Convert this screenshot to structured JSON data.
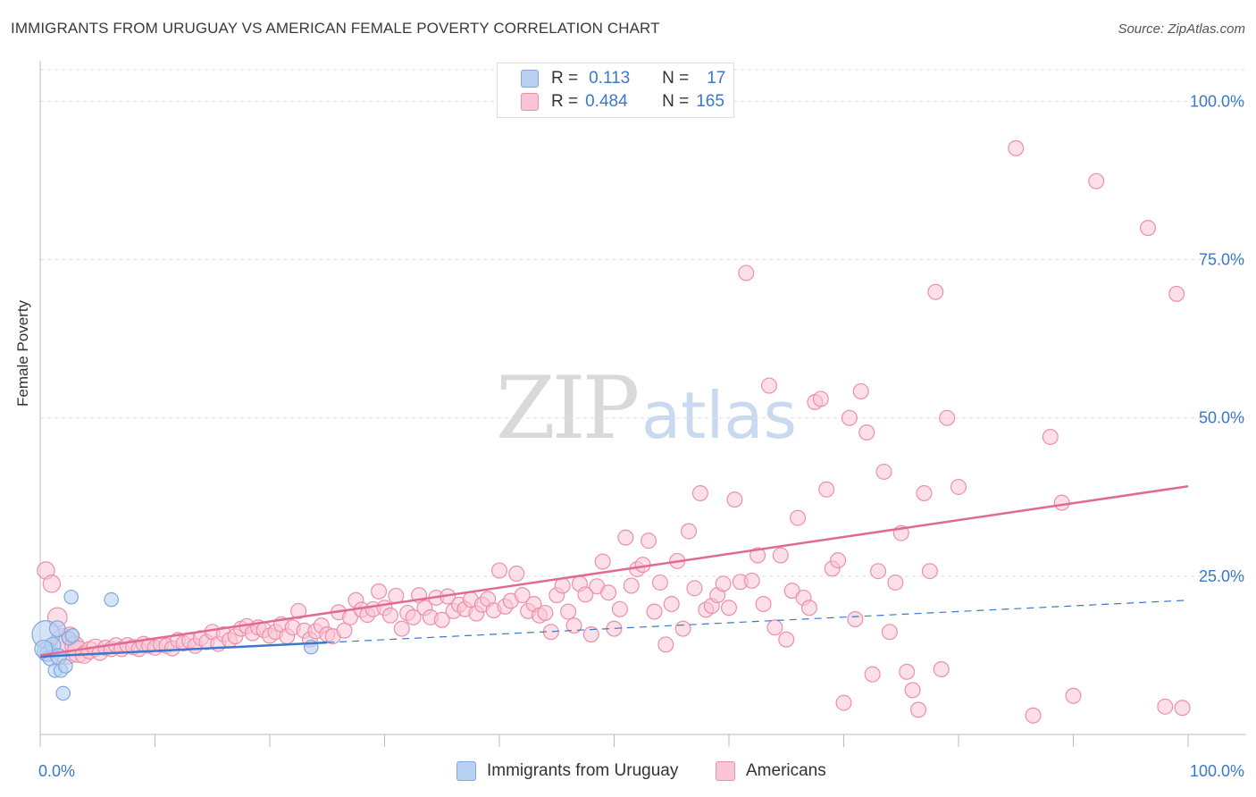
{
  "title": "IMMIGRANTS FROM URUGUAY VS AMERICAN FEMALE POVERTY CORRELATION CHART",
  "source": "Source: ZipAtlas.com",
  "watermark": {
    "zip": "ZIP",
    "atlas": "atlas"
  },
  "colors": {
    "blue_fill": "#b8d1f3",
    "blue_stroke": "#7fa8dc",
    "blue_line": "#3b78c9",
    "pink_fill": "#f9c4d4",
    "pink_stroke": "#ec8fab",
    "pink_line": "#e06a93",
    "value_text": "#3a78c9",
    "grid": "#dddddd"
  },
  "legend": {
    "rows": [
      {
        "r_label": "R =",
        "r_value": "0.113",
        "n_label": "N =",
        "n_value": "17"
      },
      {
        "r_label": "R =",
        "r_value": "0.484",
        "n_label": "N =",
        "n_value": "165"
      }
    ]
  },
  "bottom_legend": [
    "Immigrants from Uruguay",
    "Americans"
  ],
  "chart_data": {
    "type": "scatter",
    "title": "IMMIGRANTS FROM URUGUAY VS AMERICAN FEMALE POVERTY CORRELATION CHART",
    "xlabel": "",
    "ylabel": "Female Poverty",
    "xlim": [
      0,
      100
    ],
    "ylim": [
      0,
      105
    ],
    "x_tick_labels": [
      "0.0%",
      "100.0%"
    ],
    "y_tick_labels": [
      "25.0%",
      "50.0%",
      "75.0%",
      "100.0%"
    ],
    "y_ticks": [
      25,
      50,
      75,
      100
    ],
    "grid": true,
    "legend_position": "top-center",
    "series": [
      {
        "name": "Immigrants from Uruguay",
        "r": 0.113,
        "n": 17,
        "trend": {
          "x": [
            0,
            100
          ],
          "y": [
            12.3,
            21.2
          ],
          "solid_until": 25
        },
        "points": [
          [
            0.5,
            15.8,
            14
          ],
          [
            0.6,
            13.1,
            10
          ],
          [
            0.7,
            12.8,
            8
          ],
          [
            0.9,
            12.1,
            8
          ],
          [
            1.1,
            14.1,
            8
          ],
          [
            1.3,
            10.1,
            7
          ],
          [
            1.5,
            16.7,
            8
          ],
          [
            1.6,
            12.3,
            8
          ],
          [
            1.8,
            10.1,
            7
          ],
          [
            2.0,
            6.5,
            7
          ],
          [
            2.2,
            10.8,
            7
          ],
          [
            2.5,
            15.2,
            7
          ],
          [
            2.7,
            21.7,
            7
          ],
          [
            2.8,
            15.6,
            7
          ],
          [
            6.2,
            21.3,
            7
          ],
          [
            23.6,
            13.8,
            7
          ],
          [
            0.3,
            13.5,
            9
          ]
        ]
      },
      {
        "name": "Americans",
        "r": 0.484,
        "n": 165,
        "trend": {
          "x": [
            0,
            100
          ],
          "y": [
            12.5,
            39.2
          ]
        },
        "points": [
          [
            0.5,
            25.9,
            8
          ],
          [
            1.0,
            23.8,
            8
          ],
          [
            1.5,
            18.5,
            9
          ],
          [
            2.0,
            14.7,
            12
          ],
          [
            2.3,
            13.5,
            14
          ],
          [
            2.6,
            15.6,
            8
          ],
          [
            3.0,
            14.0,
            9
          ],
          [
            3.3,
            13.1,
            10
          ],
          [
            3.8,
            12.6,
            8
          ],
          [
            4.3,
            13.3,
            8
          ],
          [
            4.8,
            13.7,
            8
          ],
          [
            5.2,
            12.9,
            7
          ],
          [
            5.7,
            13.7,
            7
          ],
          [
            6.2,
            13.5,
            7
          ],
          [
            6.6,
            14.1,
            7
          ],
          [
            7.1,
            13.5,
            7
          ],
          [
            7.6,
            14.1,
            7
          ],
          [
            8.1,
            13.8,
            7
          ],
          [
            8.6,
            13.5,
            7
          ],
          [
            9.0,
            14.3,
            7
          ],
          [
            9.5,
            14.0,
            7
          ],
          [
            10.0,
            13.7,
            7
          ],
          [
            10.5,
            14.2,
            7
          ],
          [
            11.0,
            14.0,
            7
          ],
          [
            11.5,
            13.6,
            7
          ],
          [
            12.0,
            14.9,
            7
          ],
          [
            12.5,
            14.4,
            7
          ],
          [
            13.0,
            14.8,
            7
          ],
          [
            13.5,
            14.0,
            7
          ],
          [
            14.0,
            15.2,
            7
          ],
          [
            14.5,
            14.6,
            7
          ],
          [
            15.0,
            16.2,
            7
          ],
          [
            15.5,
            14.3,
            7
          ],
          [
            16.0,
            15.8,
            7
          ],
          [
            16.5,
            14.9,
            7
          ],
          [
            17.0,
            15.5,
            7
          ],
          [
            17.5,
            16.7,
            7
          ],
          [
            18.0,
            17.1,
            7
          ],
          [
            18.5,
            16.0,
            7
          ],
          [
            19.0,
            16.9,
            7
          ],
          [
            19.5,
            16.5,
            7
          ],
          [
            20.0,
            15.6,
            7
          ],
          [
            20.5,
            16.2,
            7
          ],
          [
            21.0,
            17.4,
            7
          ],
          [
            21.5,
            15.5,
            7
          ],
          [
            22.0,
            16.9,
            7
          ],
          [
            22.5,
            19.5,
            7
          ],
          [
            23.0,
            16.4,
            7
          ],
          [
            23.5,
            15.0,
            7
          ],
          [
            24.0,
            16.3,
            7
          ],
          [
            24.5,
            17.2,
            7
          ],
          [
            25.0,
            15.8,
            7
          ],
          [
            25.5,
            15.5,
            7
          ],
          [
            26.0,
            19.3,
            7
          ],
          [
            26.5,
            16.4,
            7
          ],
          [
            27.0,
            18.5,
            7
          ],
          [
            27.5,
            21.2,
            7
          ],
          [
            28.0,
            19.7,
            7
          ],
          [
            28.5,
            18.9,
            7
          ],
          [
            29.0,
            19.8,
            7
          ],
          [
            29.5,
            22.6,
            7
          ],
          [
            30.0,
            20.0,
            7
          ],
          [
            30.5,
            18.8,
            7
          ],
          [
            31.0,
            21.9,
            7
          ],
          [
            31.5,
            16.7,
            7
          ],
          [
            32.0,
            19.2,
            7
          ],
          [
            32.5,
            18.5,
            7
          ],
          [
            33.0,
            22.0,
            7
          ],
          [
            33.5,
            20.0,
            7
          ],
          [
            34.0,
            18.5,
            7
          ],
          [
            34.5,
            21.6,
            7
          ],
          [
            35.0,
            18.1,
            7
          ],
          [
            35.5,
            21.8,
            7
          ],
          [
            36.0,
            19.5,
            7
          ],
          [
            36.5,
            20.5,
            7
          ],
          [
            37.0,
            19.8,
            7
          ],
          [
            37.5,
            21.3,
            7
          ],
          [
            38.0,
            19.1,
            7
          ],
          [
            38.5,
            20.5,
            7
          ],
          [
            39.0,
            21.4,
            7
          ],
          [
            39.5,
            19.6,
            7
          ],
          [
            40.0,
            25.9,
            7
          ],
          [
            40.5,
            20.2,
            7
          ],
          [
            41.0,
            21.1,
            7
          ],
          [
            41.5,
            25.4,
            7
          ],
          [
            42.0,
            22.0,
            7
          ],
          [
            42.5,
            19.5,
            7
          ],
          [
            43.0,
            20.6,
            7
          ],
          [
            43.5,
            18.8,
            7
          ],
          [
            44.0,
            19.2,
            7
          ],
          [
            44.5,
            16.2,
            7
          ],
          [
            45.0,
            22.0,
            7
          ],
          [
            45.5,
            23.5,
            7
          ],
          [
            46.0,
            19.4,
            7
          ],
          [
            46.5,
            17.2,
            7
          ],
          [
            47.0,
            23.8,
            7
          ],
          [
            47.5,
            22.1,
            7
          ],
          [
            48.0,
            15.8,
            7
          ],
          [
            48.5,
            23.4,
            7
          ],
          [
            49.0,
            27.3,
            7
          ],
          [
            49.5,
            22.4,
            7
          ],
          [
            50.0,
            16.7,
            7
          ],
          [
            50.5,
            19.8,
            7
          ],
          [
            51.0,
            31.1,
            7
          ],
          [
            51.5,
            23.5,
            7
          ],
          [
            52.0,
            26.1,
            7
          ],
          [
            52.5,
            26.8,
            7
          ],
          [
            53.0,
            30.6,
            7
          ],
          [
            53.5,
            19.4,
            7
          ],
          [
            54.0,
            24.0,
            7
          ],
          [
            54.5,
            14.2,
            7
          ],
          [
            55.0,
            20.6,
            7
          ],
          [
            55.5,
            27.4,
            7
          ],
          [
            56.0,
            16.7,
            7
          ],
          [
            56.5,
            32.1,
            7
          ],
          [
            57.0,
            23.1,
            7
          ],
          [
            57.5,
            38.1,
            7
          ],
          [
            58.0,
            19.7,
            7
          ],
          [
            58.5,
            20.3,
            7
          ],
          [
            59.0,
            22.0,
            7
          ],
          [
            59.5,
            23.8,
            7
          ],
          [
            60.0,
            20.0,
            7
          ],
          [
            60.5,
            37.1,
            7
          ],
          [
            61.0,
            24.1,
            7
          ],
          [
            61.5,
            72.9,
            7
          ],
          [
            62.0,
            24.3,
            7
          ],
          [
            62.5,
            28.3,
            7
          ],
          [
            63.0,
            20.6,
            7
          ],
          [
            63.5,
            55.1,
            7
          ],
          [
            64.0,
            16.9,
            7
          ],
          [
            64.5,
            28.3,
            7
          ],
          [
            65.0,
            15.0,
            7
          ],
          [
            65.5,
            22.7,
            7
          ],
          [
            66.0,
            34.2,
            7
          ],
          [
            66.5,
            21.6,
            7
          ],
          [
            67.0,
            20.0,
            7
          ],
          [
            67.5,
            52.5,
            7
          ],
          [
            68.0,
            53.0,
            7
          ],
          [
            68.5,
            38.7,
            7
          ],
          [
            69.0,
            26.2,
            7
          ],
          [
            69.5,
            27.5,
            7
          ],
          [
            70.0,
            5.0,
            7
          ],
          [
            70.5,
            50.0,
            7
          ],
          [
            71.0,
            18.2,
            7
          ],
          [
            71.5,
            54.2,
            7
          ],
          [
            72.0,
            47.7,
            7
          ],
          [
            72.5,
            9.5,
            7
          ],
          [
            73.0,
            25.8,
            7
          ],
          [
            73.5,
            41.5,
            7
          ],
          [
            74.0,
            16.2,
            7
          ],
          [
            74.5,
            24.0,
            7
          ],
          [
            75.0,
            31.8,
            7
          ],
          [
            75.5,
            9.9,
            7
          ],
          [
            76.0,
            7.0,
            7
          ],
          [
            76.5,
            3.9,
            7
          ],
          [
            77.0,
            38.1,
            7
          ],
          [
            77.5,
            25.8,
            7
          ],
          [
            78.0,
            69.9,
            7
          ],
          [
            78.5,
            10.3,
            7
          ],
          [
            79.0,
            50.0,
            7
          ],
          [
            80.0,
            39.1,
            7
          ],
          [
            85.0,
            92.6,
            7
          ],
          [
            86.5,
            3.0,
            7
          ],
          [
            88.0,
            47.0,
            7
          ],
          [
            89.0,
            36.6,
            7
          ],
          [
            90.0,
            6.1,
            7
          ],
          [
            92.0,
            87.4,
            7
          ],
          [
            96.5,
            80.0,
            7
          ],
          [
            98.0,
            4.4,
            7
          ],
          [
            99.0,
            69.6,
            7
          ],
          [
            99.5,
            4.2,
            7
          ]
        ]
      }
    ]
  }
}
